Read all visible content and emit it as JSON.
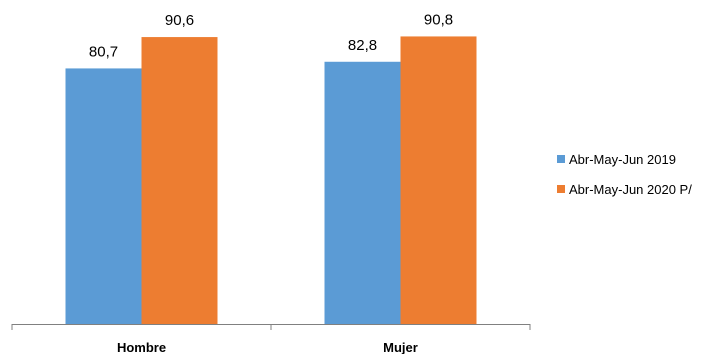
{
  "chart_data": {
    "type": "bar",
    "title": "",
    "xlabel": "",
    "ylabel": "",
    "categories": [
      "Hombre",
      "Mujer"
    ],
    "series": [
      {
        "name": "Abr-May-Jun 2019",
        "values": [
          80.7,
          82.8
        ],
        "labels": [
          "80,7",
          "82,8"
        ],
        "color": "#5B9BD5"
      },
      {
        "name": "Abr-May-Jun 2020 P/",
        "values": [
          90.6,
          90.8
        ],
        "labels": [
          "90,6",
          "90,8"
        ],
        "color": "#ED7D31"
      }
    ],
    "ylim": [
      0,
      100
    ],
    "grid": false,
    "legend": "right"
  }
}
